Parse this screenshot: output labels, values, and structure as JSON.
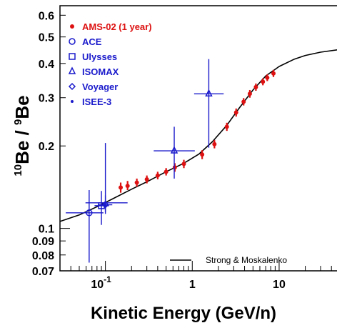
{
  "chart_data": {
    "type": "scatter",
    "xlabel": "Kinetic Energy (GeV/n)",
    "ylabel": {
      "pre1": "10",
      "main1": "Be / ",
      "pre2": "9",
      "main2": "Be"
    },
    "xscale": "log",
    "yscale": "log",
    "xlim": [
      0.03,
      50
    ],
    "ylim": [
      0.07,
      0.65
    ],
    "x_ticks": [
      {
        "value": 0.1,
        "label": "10",
        "exp": "-1"
      },
      {
        "value": 1,
        "label": "1",
        "exp": ""
      },
      {
        "value": 10,
        "label": "10",
        "exp": ""
      }
    ],
    "y_ticks": [
      {
        "value": 0.6,
        "label": "0.6"
      },
      {
        "value": 0.5,
        "label": "0.5"
      },
      {
        "value": 0.4,
        "label": "0.4"
      },
      {
        "value": 0.3,
        "label": "0.3"
      },
      {
        "value": 0.2,
        "label": "0.2"
      },
      {
        "value": 0.1,
        "label": "0.1"
      },
      {
        "value": 0.09,
        "label": "0.09"
      },
      {
        "value": 0.08,
        "label": "0.08"
      },
      {
        "value": 0.07,
        "label": "0.07"
      }
    ],
    "legend_position": "top-left",
    "legend": [
      {
        "name": "AMS-02 (1 year)",
        "marker": "dot",
        "color": "#dd1111"
      },
      {
        "name": "ACE",
        "marker": "circle",
        "color": "#1a1acc"
      },
      {
        "name": "Ulysses",
        "marker": "square",
        "color": "#1a1acc"
      },
      {
        "name": "ISOMAX",
        "marker": "triangle",
        "color": "#1a1acc"
      },
      {
        "name": "Voyager",
        "marker": "diamond",
        "color": "#1a1acc"
      },
      {
        "name": "ISEE-3",
        "marker": "star",
        "color": "#1a1acc"
      }
    ],
    "series": [
      {
        "name": "AMS-02 (1 year)",
        "color": "#dd1111",
        "points": [
          {
            "x": 0.15,
            "y": 0.141,
            "ylo": 0.135,
            "yhi": 0.147
          },
          {
            "x": 0.18,
            "y": 0.143,
            "ylo": 0.138,
            "yhi": 0.149
          },
          {
            "x": 0.23,
            "y": 0.147,
            "ylo": 0.142,
            "yhi": 0.152
          },
          {
            "x": 0.3,
            "y": 0.151,
            "ylo": 0.146,
            "yhi": 0.156
          },
          {
            "x": 0.4,
            "y": 0.156,
            "ylo": 0.151,
            "yhi": 0.161
          },
          {
            "x": 0.5,
            "y": 0.161,
            "ylo": 0.156,
            "yhi": 0.166
          },
          {
            "x": 0.63,
            "y": 0.167,
            "ylo": 0.161,
            "yhi": 0.173
          },
          {
            "x": 0.8,
            "y": 0.172,
            "ylo": 0.166,
            "yhi": 0.178
          },
          {
            "x": 1.3,
            "y": 0.186,
            "ylo": 0.179,
            "yhi": 0.193
          },
          {
            "x": 1.8,
            "y": 0.203,
            "ylo": 0.196,
            "yhi": 0.21
          },
          {
            "x": 2.5,
            "y": 0.235,
            "ylo": 0.227,
            "yhi": 0.243
          },
          {
            "x": 3.2,
            "y": 0.265,
            "ylo": 0.256,
            "yhi": 0.274
          },
          {
            "x": 3.9,
            "y": 0.29,
            "ylo": 0.281,
            "yhi": 0.299
          },
          {
            "x": 4.6,
            "y": 0.31,
            "ylo": 0.3,
            "yhi": 0.32
          },
          {
            "x": 5.4,
            "y": 0.328,
            "ylo": 0.318,
            "yhi": 0.338
          },
          {
            "x": 6.5,
            "y": 0.343,
            "ylo": 0.333,
            "yhi": 0.353
          },
          {
            "x": 7.3,
            "y": 0.355,
            "ylo": 0.345,
            "yhi": 0.365
          },
          {
            "x": 8.6,
            "y": 0.368,
            "ylo": 0.357,
            "yhi": 0.379
          }
        ]
      },
      {
        "name": "ACE",
        "marker": "circle",
        "color": "#1a1acc",
        "points": [
          {
            "x": 0.065,
            "y": 0.114,
            "ylo": 0.075,
            "yhi": 0.138,
            "xlo": 0.035,
            "xhi": 0.095
          }
        ]
      },
      {
        "name": "Ulysses",
        "marker": "square",
        "color": "#1a1acc",
        "points": [
          {
            "x": 0.09,
            "y": 0.121,
            "ylo": 0.103,
            "yhi": 0.137,
            "xlo": 0.075,
            "xhi": 0.11
          }
        ]
      },
      {
        "name": "ISOMAX",
        "marker": "triangle",
        "color": "#1a1acc",
        "points": [
          {
            "x": 0.62,
            "y": 0.192,
            "ylo": 0.152,
            "yhi": 0.235,
            "xlo": 0.36,
            "xhi": 1.07
          },
          {
            "x": 1.55,
            "y": 0.31,
            "ylo": 0.197,
            "yhi": 0.415,
            "xlo": 1.05,
            "xhi": 2.3
          }
        ]
      },
      {
        "name": "Voyager",
        "marker": "diamond",
        "color": "#1a1acc",
        "points": [
          {
            "x": 0.1,
            "y": 0.122,
            "ylo": 0.113,
            "yhi": 0.132,
            "xlo": 0.082,
            "xhi": 0.12
          }
        ]
      },
      {
        "name": "ISEE-3",
        "marker": "star",
        "color": "#1a1acc",
        "points": [
          {
            "x": 0.1,
            "y": 0.124,
            "ylo": 0.115,
            "yhi": 0.205,
            "xlo": 0.059,
            "xhi": 0.18
          }
        ]
      }
    ],
    "model_curve": {
      "name": "Strong & Moskalenko",
      "color": "#000000",
      "x": [
        0.03,
        0.05,
        0.08,
        0.12,
        0.2,
        0.3,
        0.5,
        0.8,
        1.2,
        1.7,
        2.5,
        3.5,
        5,
        7,
        10,
        15,
        20,
        30,
        50
      ],
      "y": [
        0.106,
        0.112,
        0.12,
        0.128,
        0.139,
        0.148,
        0.161,
        0.173,
        0.187,
        0.207,
        0.238,
        0.276,
        0.32,
        0.36,
        0.39,
        0.415,
        0.428,
        0.44,
        0.45
      ]
    }
  }
}
